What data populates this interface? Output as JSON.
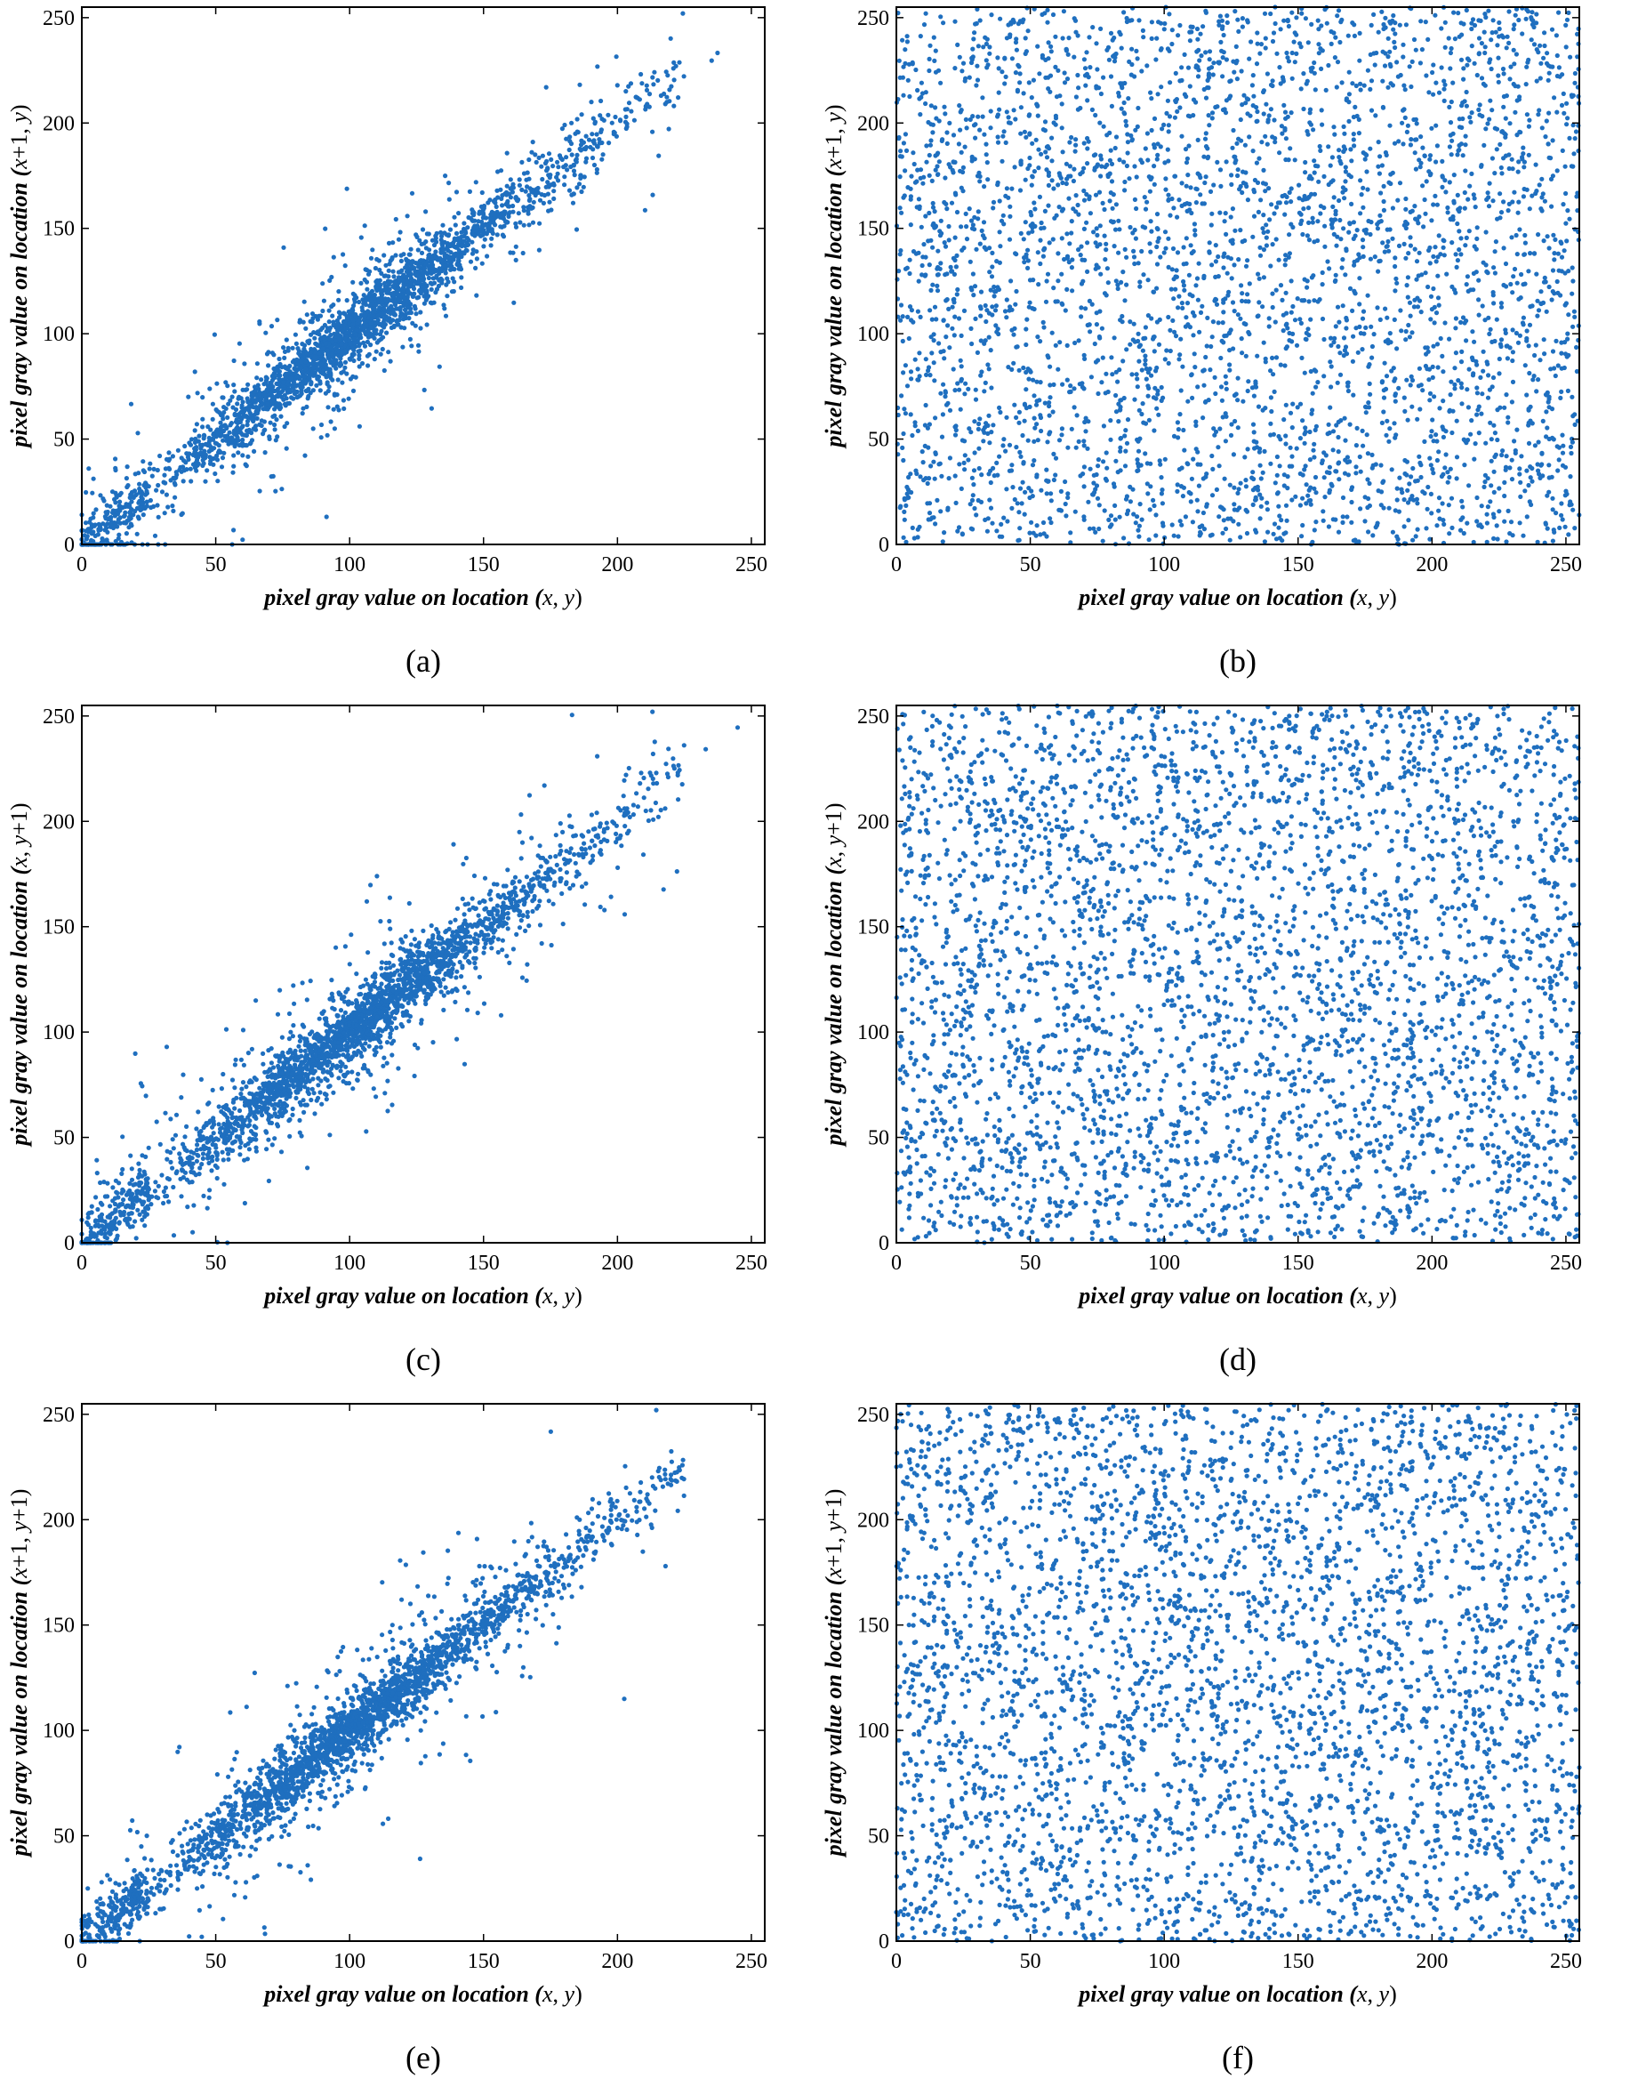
{
  "figure": {
    "marker_color": "#1f6fbf"
  },
  "chart_data": [
    {
      "type": "scatter",
      "panel": "a",
      "caption": "(a)",
      "pattern": "correlated",
      "xlabel": "pixel gray value on location (x, y)",
      "ylabel": "pixel gray value on location (x+1, y)",
      "xlim": [
        0,
        255
      ],
      "ylim": [
        0,
        255
      ],
      "xticks": [
        0,
        50,
        100,
        150,
        200,
        250
      ],
      "yticks": [
        0,
        50,
        100,
        150,
        200,
        250
      ],
      "grid": false,
      "color": "#1f6fbf"
    },
    {
      "type": "scatter",
      "panel": "b",
      "caption": "(b)",
      "pattern": "uniform",
      "xlabel": "pixel gray value on location (x, y)",
      "ylabel": "pixel gray value on location (x+1, y)",
      "xlim": [
        0,
        255
      ],
      "ylim": [
        0,
        255
      ],
      "xticks": [
        0,
        50,
        100,
        150,
        200,
        250
      ],
      "yticks": [
        0,
        50,
        100,
        150,
        200,
        250
      ],
      "grid": false,
      "color": "#1f6fbf"
    },
    {
      "type": "scatter",
      "panel": "c",
      "caption": "(c)",
      "pattern": "correlated",
      "xlabel": "pixel gray value on location (x, y)",
      "ylabel": "pixel gray value on location (x, y+1)",
      "xlim": [
        0,
        255
      ],
      "ylim": [
        0,
        255
      ],
      "xticks": [
        0,
        50,
        100,
        150,
        200,
        250
      ],
      "yticks": [
        0,
        50,
        100,
        150,
        200,
        250
      ],
      "grid": false,
      "color": "#1f6fbf"
    },
    {
      "type": "scatter",
      "panel": "d",
      "caption": "(d)",
      "pattern": "uniform",
      "xlabel": "pixel gray value on location (x, y)",
      "ylabel": "pixel gray value on location (x, y+1)",
      "xlim": [
        0,
        255
      ],
      "ylim": [
        0,
        255
      ],
      "xticks": [
        0,
        50,
        100,
        150,
        200,
        250
      ],
      "yticks": [
        0,
        50,
        100,
        150,
        200,
        250
      ],
      "grid": false,
      "color": "#1f6fbf"
    },
    {
      "type": "scatter",
      "panel": "e",
      "caption": "(e)",
      "pattern": "correlated",
      "xlabel": "pixel gray value on location (x, y)",
      "ylabel": "pixel gray value on location (x+1, y+1)",
      "xlim": [
        0,
        255
      ],
      "ylim": [
        0,
        255
      ],
      "xticks": [
        0,
        50,
        100,
        150,
        200,
        250
      ],
      "yticks": [
        0,
        50,
        100,
        150,
        200,
        250
      ],
      "grid": false,
      "color": "#1f6fbf"
    },
    {
      "type": "scatter",
      "panel": "f",
      "caption": "(f)",
      "pattern": "uniform",
      "xlabel": "pixel gray value on location (x, y)",
      "ylabel": "pixel gray value on location (x+1, y+1)",
      "xlim": [
        0,
        255
      ],
      "ylim": [
        0,
        255
      ],
      "xticks": [
        0,
        50,
        100,
        150,
        200,
        250
      ],
      "yticks": [
        0,
        50,
        100,
        150,
        200,
        250
      ],
      "grid": false,
      "color": "#1f6fbf"
    }
  ]
}
